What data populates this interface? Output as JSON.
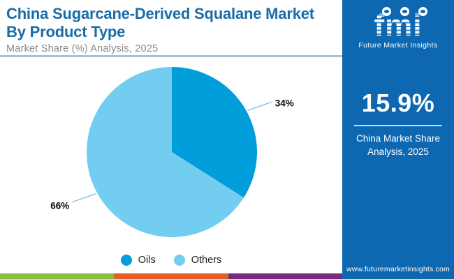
{
  "header": {
    "title_line1": "China Sugarcane-Derived Squalane Market",
    "title_line2": "By Product Type",
    "subtitle": "Market Share (%) Analysis, 2025"
  },
  "sidebar": {
    "logo": {
      "brand": "fmi",
      "brand_caption": "Future Market Insights"
    },
    "stat_value": "15.9%",
    "stat_caption": "China Market Share Analysis, 2025",
    "website": "www.futuremarketinsights.com",
    "background_color": "#0d68b1"
  },
  "legend": [
    {
      "label": "Oils",
      "color": "#009fdc"
    },
    {
      "label": "Others",
      "color": "#73cdf1"
    }
  ],
  "chart_data": {
    "type": "pie",
    "title": "China Sugarcane-Derived Squalane Market By Product Type",
    "subtitle": "Market Share (%) Analysis, 2025",
    "categories": [
      "Oils",
      "Others"
    ],
    "values": [
      34,
      66
    ],
    "unit": "%",
    "data_labels": [
      "34%",
      "66%"
    ],
    "colors": [
      "#009fdc",
      "#73cdf1"
    ],
    "start_angle_deg": 0,
    "direction": "clockwise",
    "legend_position": "bottom"
  },
  "footer_bar_colors": [
    "#85bf41",
    "#e75d26",
    "#7b2a82"
  ],
  "accents": {
    "title_color": "#1a6ca9",
    "divider_color": "#9fc2d6",
    "leader_line_color": "#4aa8d8"
  }
}
